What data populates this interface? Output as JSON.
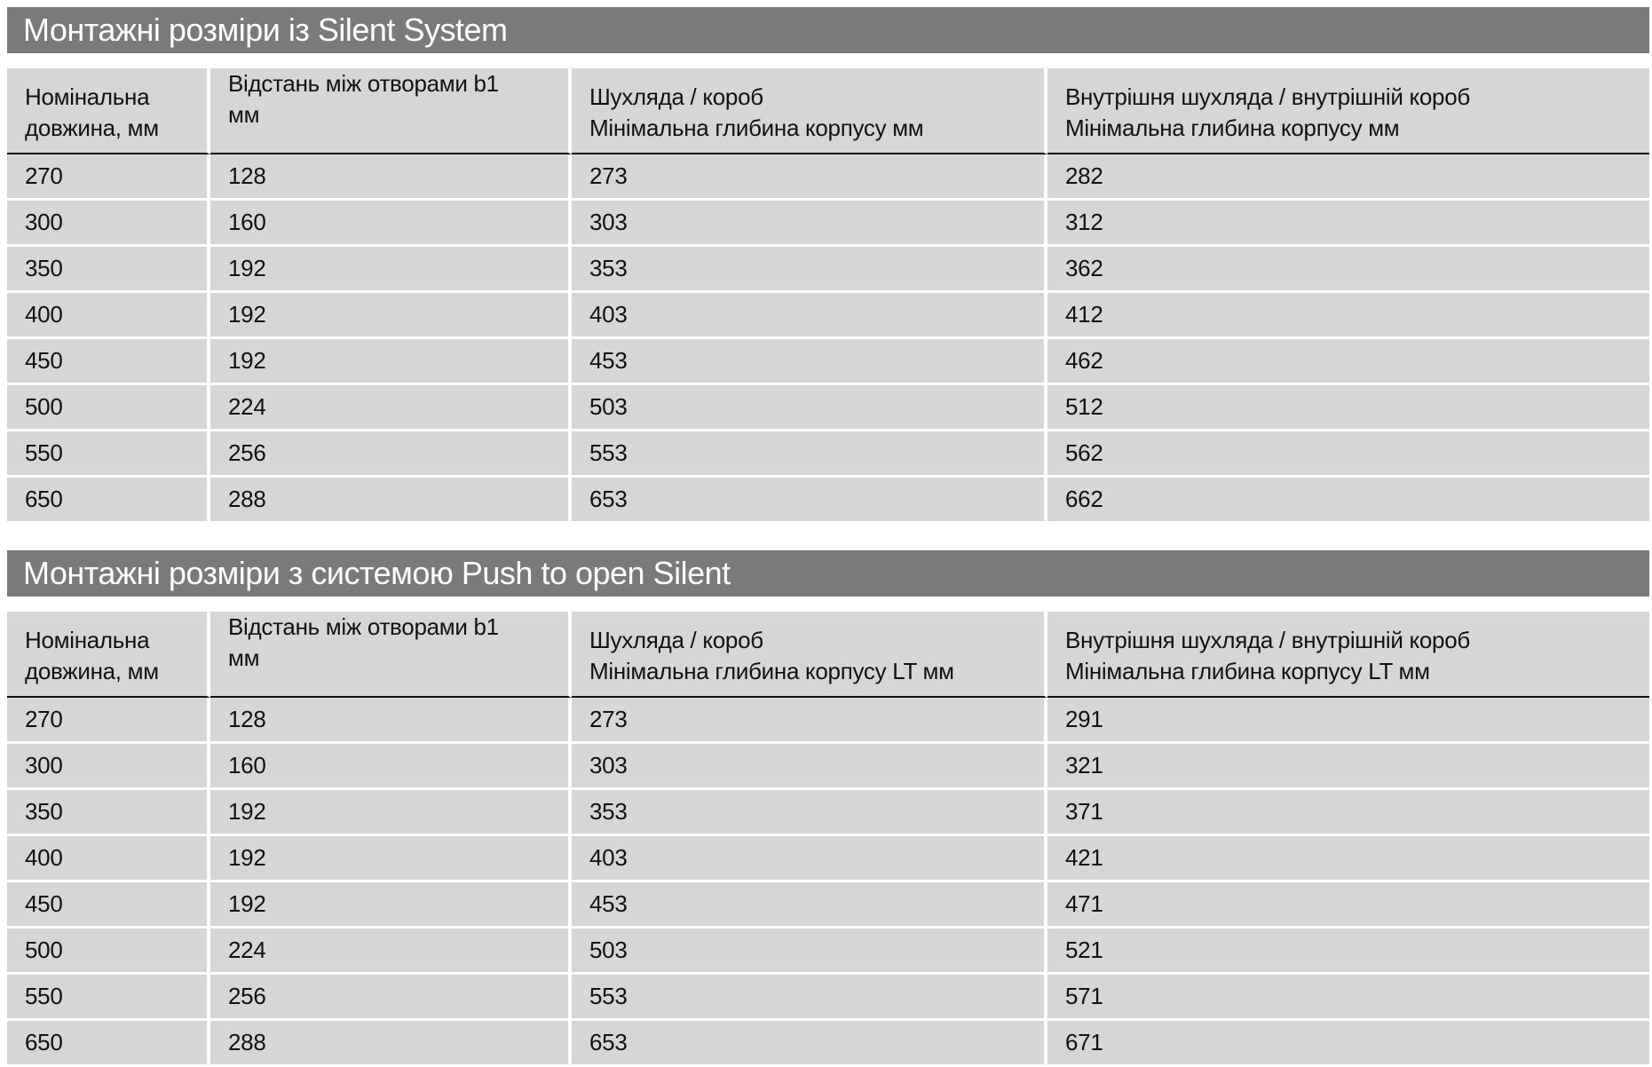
{
  "tables": [
    {
      "title": "Монтажні розміри із Silent System",
      "headers": [
        [
          "Номінальна",
          "довжина, мм"
        ],
        [
          "Відстань між отворами b1",
          "мм"
        ],
        [
          "Шухляда / короб",
          "Мінімальна глибина корпусу мм"
        ],
        [
          "Внутрішня шухляда / внутрішній короб",
          "Мінімальна глибина корпусу мм"
        ]
      ],
      "rows": [
        [
          "270",
          "128",
          "273",
          "282"
        ],
        [
          "300",
          "160",
          "303",
          "312"
        ],
        [
          "350",
          "192",
          "353",
          "362"
        ],
        [
          "400",
          "192",
          "403",
          "412"
        ],
        [
          "450",
          "192",
          "453",
          "462"
        ],
        [
          "500",
          "224",
          "503",
          "512"
        ],
        [
          "550",
          "256",
          "553",
          "562"
        ],
        [
          "650",
          "288",
          "653",
          "662"
        ]
      ]
    },
    {
      "title": "Монтажні розміри з системою Push to open Silent",
      "headers": [
        [
          "Номінальна",
          "довжина, мм"
        ],
        [
          "Відстань між отворами b1",
          "мм"
        ],
        [
          "Шухляда / короб",
          "Мінімальна глибина корпусу LT мм"
        ],
        [
          "Внутрішня шухляда / внутрішній короб",
          "Мінімальна глибина корпусу LT мм"
        ]
      ],
      "rows": [
        [
          "270",
          "128",
          "273",
          "291"
        ],
        [
          "300",
          "160",
          "303",
          "321"
        ],
        [
          "350",
          "192",
          "353",
          "371"
        ],
        [
          "400",
          "192",
          "403",
          "421"
        ],
        [
          "450",
          "192",
          "453",
          "471"
        ],
        [
          "500",
          "224",
          "503",
          "521"
        ],
        [
          "550",
          "256",
          "553",
          "571"
        ],
        [
          "650",
          "288",
          "653",
          "671"
        ]
      ]
    }
  ]
}
